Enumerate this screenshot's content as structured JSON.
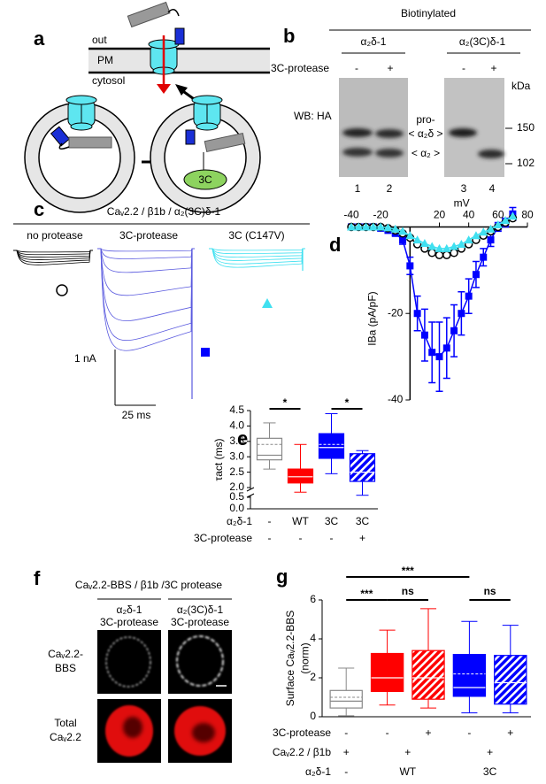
{
  "panel_a": {
    "label": "a",
    "out": "out",
    "pm": "PM",
    "cytosol": "cytosol",
    "protease": "3C"
  },
  "panel_b": {
    "label": "b",
    "title": "Biotinylated",
    "constructs": [
      "α₂δ-1",
      "α₂(3C)δ-1"
    ],
    "protease_label": "3C-protease",
    "protease": [
      "-",
      "+",
      "-",
      "+"
    ],
    "lanes": [
      "1",
      "2",
      "3",
      "4"
    ],
    "kda": "kDa",
    "wb": "WB: HA",
    "bands": [
      "pro-",
      "< α₂δ >",
      "< α₂ >"
    ],
    "markers": [
      "150",
      "102"
    ]
  },
  "panel_c": {
    "label": "c",
    "title": "Caᵥ2.2 / β1b / α₂(3C)δ-1",
    "conditions": [
      "no protease",
      "3C-protease",
      "3C (C147V)"
    ],
    "scale_current": "1 nA",
    "scale_time": "25 ms"
  },
  "panel_f": {
    "label": "f",
    "title": "Caᵥ2.2-BBS / β1b /3C protease",
    "columns": [
      [
        "α₂δ-1",
        "3C-protease"
      ],
      [
        "α₂(3C)δ-1",
        "3C-protease"
      ]
    ],
    "rows": [
      [
        "Caᵥ2.2-",
        "BBS"
      ],
      [
        "Total",
        "Caᵥ2.2"
      ]
    ]
  },
  "chart_data": [
    {
      "type": "line",
      "label": "d",
      "x_label": "mV",
      "y_label": "IBa (pA/pF)",
      "x": [
        -40,
        -35,
        -30,
        -25,
        -20,
        -15,
        -10,
        -5,
        0,
        5,
        10,
        15,
        20,
        25,
        30,
        35,
        40,
        45,
        50,
        55,
        60,
        65,
        70
      ],
      "xlim": [
        -40,
        80
      ],
      "xticks": [
        -40,
        -20,
        20,
        40,
        60,
        80
      ],
      "ylim": [
        -40,
        5
      ],
      "yticks": [
        -20,
        -40
      ],
      "series": [
        {
          "color": "#0000ff",
          "marker": "square",
          "values": [
            0,
            0,
            0,
            0,
            -0.3,
            -0.8,
            -1.5,
            -3,
            -9,
            -20,
            -25,
            -29,
            -30,
            -28,
            -24,
            -20,
            -16,
            -11,
            -7,
            -3,
            0,
            1,
            3
          ],
          "errors": [
            0,
            0,
            0,
            0,
            0.2,
            0.3,
            0.5,
            1,
            2,
            4,
            6,
            7,
            8,
            7,
            6,
            5,
            4,
            3,
            2,
            1.5,
            1,
            1,
            1.5
          ]
        },
        {
          "color": "#000000",
          "marker": "circle",
          "values": [
            0,
            0,
            0,
            0,
            0,
            -0.3,
            -0.8,
            -1.5,
            -2.5,
            -4,
            -5,
            -6,
            -6.5,
            -6.5,
            -6,
            -5,
            -4,
            -3,
            -2,
            -1,
            0,
            1,
            2
          ]
        },
        {
          "color": "#40e0f0",
          "marker": "triangle",
          "values": [
            0,
            0,
            0,
            0,
            0,
            -0.2,
            -0.5,
            -1,
            -2,
            -3,
            -3.8,
            -4.5,
            -5,
            -5,
            -4.5,
            -4,
            -3,
            -2,
            -1.2,
            -0.5,
            0.5,
            1.5,
            2.5
          ]
        }
      ]
    },
    {
      "type": "box",
      "label": "e",
      "y_label": "τact (ms)",
      "ylim": [
        0,
        4.5
      ],
      "axis_break": true,
      "yticks": [
        {
          "value": 0,
          "label": "0.0"
        },
        {
          "value": 0.5,
          "label": "0.5"
        },
        {
          "value": 2,
          "label": "2.0"
        },
        {
          "value": 2.5,
          "label": "2.5"
        },
        {
          "value": 3,
          "label": "3.0"
        },
        {
          "value": 3.5,
          "label": "3.5"
        },
        {
          "value": 4,
          "label": "4.0"
        },
        {
          "value": 4.5,
          "label": "4.5"
        }
      ],
      "boxes": [
        {
          "color": "#888888",
          "fill": "#ffffff",
          "q1": 2.9,
          "median": 3.05,
          "q3": 3.6,
          "mean": 3.4,
          "whisker_low": 2.6,
          "whisker_high": 4.1
        },
        {
          "color": "#ff0000",
          "fill": "#ff0000",
          "q1": 2.15,
          "median": 2.35,
          "q3": 2.6,
          "whisker_low": 1.85,
          "whisker_high": 3.4
        },
        {
          "color": "#0000ff",
          "fill": "#0000ff",
          "q1": 2.95,
          "median": 3.3,
          "q3": 3.75,
          "mean": 3.4,
          "whisker_low": 2.45,
          "whisker_high": 4.4
        },
        {
          "color": "#0000ff",
          "fill": "#0000ff",
          "hatch": true,
          "q1": 2.2,
          "median": 2.5,
          "q3": 3.1,
          "whisker_low": 1.75,
          "whisker_high": 3.2
        }
      ],
      "significance": [
        {
          "from": 0,
          "to": 1,
          "label": "*"
        },
        {
          "from": 2,
          "to": 3,
          "label": "*"
        }
      ],
      "rows": [
        {
          "label": "α₂δ-1",
          "items": [
            {
              "text": "-",
              "from": 0,
              "to": 0
            },
            {
              "text": "WT",
              "from": 1,
              "to": 1
            },
            {
              "text": "3C",
              "from": 2,
              "to": 2
            },
            {
              "text": "3C",
              "from": 3,
              "to": 3
            }
          ]
        },
        {
          "label": "3C-protease",
          "items": [
            {
              "text": "-",
              "from": 0,
              "to": 0
            },
            {
              "text": "-",
              "from": 1,
              "to": 1
            },
            {
              "text": "-",
              "from": 2,
              "to": 2
            },
            {
              "text": "+",
              "from": 3,
              "to": 3
            }
          ]
        }
      ]
    },
    {
      "type": "box",
      "label": "g",
      "y_label": [
        "Surface Caᵥ2.2-BBS",
        "(norm)"
      ],
      "ylim": [
        0,
        6
      ],
      "yticks": [
        0,
        2,
        4,
        6
      ],
      "boxes": [
        {
          "color": "#888888",
          "fill": "#ffffff",
          "q1": 0.45,
          "median": 0.8,
          "q3": 1.35,
          "mean": 1.0,
          "whisker_low": 0.05,
          "whisker_high": 2.5
        },
        {
          "color": "#ff0000",
          "fill": "#ff0000",
          "q1": 1.3,
          "median": 2.0,
          "q3": 3.25,
          "whisker_low": 0.6,
          "whisker_high": 4.45
        },
        {
          "color": "#ff0000",
          "fill": "#ff0000",
          "hatch": true,
          "q1": 0.9,
          "median": 2.0,
          "q3": 3.4,
          "whisker_low": 0.45,
          "whisker_high": 5.55
        },
        {
          "color": "#0000ff",
          "fill": "#0000ff",
          "q1": 1.05,
          "median": 1.5,
          "q3": 3.2,
          "mean": 2.2,
          "whisker_low": 0.2,
          "whisker_high": 4.9
        },
        {
          "color": "#0000ff",
          "fill": "#0000ff",
          "hatch": true,
          "q1": 0.65,
          "median": 1.75,
          "q3": 3.15,
          "whisker_low": 0.2,
          "whisker_high": 4.7
        }
      ],
      "significance": [
        {
          "from": 0,
          "to": 1,
          "label": "***"
        },
        {
          "from": 1,
          "to": 2,
          "label": "ns"
        },
        {
          "from": 0,
          "to": 3,
          "label": "***"
        },
        {
          "from": 3,
          "to": 4,
          "label": "ns"
        }
      ],
      "rows": [
        {
          "label": "3C-protease",
          "items": [
            {
              "text": "-",
              "from": 0,
              "to": 0
            },
            {
              "text": "-",
              "from": 1,
              "to": 1
            },
            {
              "text": "+",
              "from": 2,
              "to": 2
            },
            {
              "text": "-",
              "from": 3,
              "to": 3
            },
            {
              "text": "+",
              "from": 4,
              "to": 4
            }
          ]
        },
        {
          "label": "Caᵥ2.2 / β1b",
          "items": [
            {
              "text": "+",
              "from": 0,
              "to": 0
            },
            {
              "text": "+",
              "from": 1,
              "to": 2
            },
            {
              "text": "+",
              "from": 3,
              "to": 4
            }
          ]
        },
        {
          "label": "α₂δ-1",
          "items": [
            {
              "text": "-",
              "from": 0,
              "to": 0
            },
            {
              "text": "WT",
              "from": 1,
              "to": 2
            },
            {
              "text": "3C",
              "from": 3,
              "to": 4
            }
          ]
        }
      ]
    }
  ]
}
